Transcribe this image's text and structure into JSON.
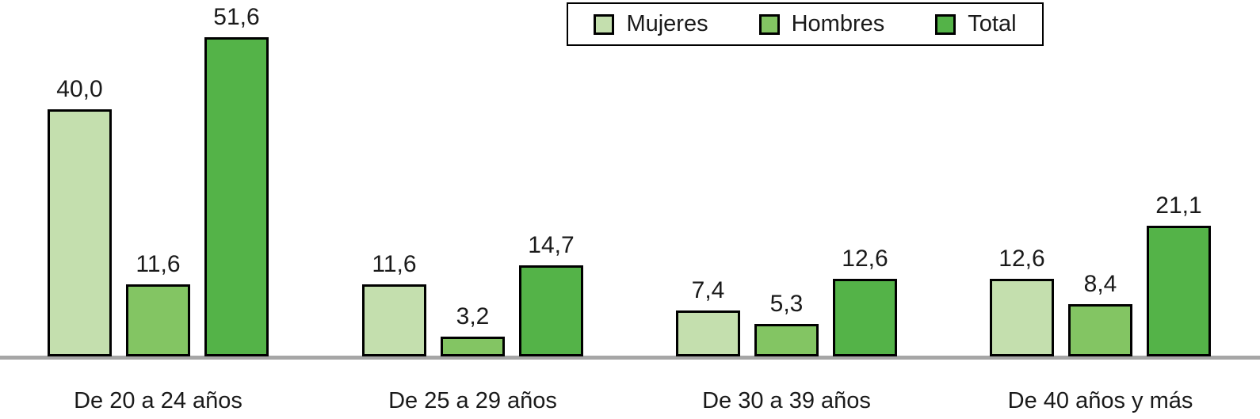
{
  "chart_data": {
    "type": "bar",
    "title": "",
    "xlabel": "",
    "ylabel": "",
    "grid": false,
    "legend_position": "top-center",
    "ylim": [
      0,
      55
    ],
    "decimal_separator": ",",
    "categories": [
      "De 20 a 24 años",
      "De 25 a 29 años",
      "De 30 a 39 años",
      "De 40 años y más"
    ],
    "series": [
      {
        "name": "Mujeres",
        "color": "#c4dfae",
        "values": [
          40.0,
          11.6,
          7.4,
          12.6
        ],
        "labels": [
          "40,0",
          "11,6",
          "7,4",
          "12,6"
        ]
      },
      {
        "name": "Hombres",
        "color": "#83c563",
        "values": [
          11.6,
          3.2,
          5.3,
          8.4
        ],
        "labels": [
          "11,6",
          "3,2",
          "5,3",
          "8,4"
        ]
      },
      {
        "name": "Total",
        "color": "#54b348",
        "values": [
          51.6,
          14.7,
          12.6,
          21.1
        ],
        "labels": [
          "51,6",
          "14,7",
          "12,6",
          "21,1"
        ]
      }
    ],
    "colors": {
      "bar_border": "#000000",
      "axis_line": "#a6a6a6",
      "text": "#1a1a1a",
      "legend_border": "#000000",
      "background": "#ffffff"
    }
  }
}
